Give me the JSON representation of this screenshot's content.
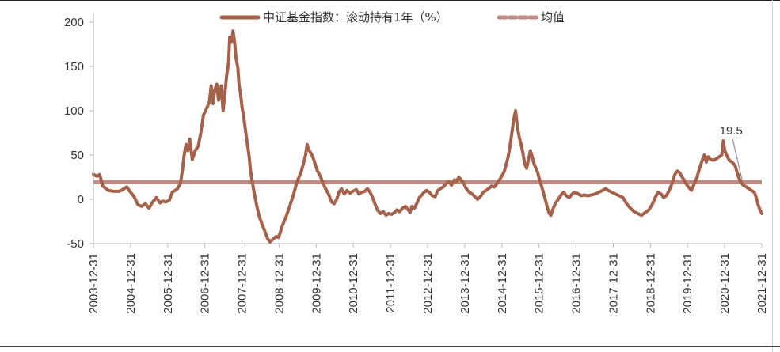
{
  "chart_data": {
    "type": "line",
    "title": "",
    "xlabel": "",
    "ylabel": "",
    "ylim": [
      -50,
      200
    ],
    "yticks": [
      "200",
      "150",
      "100",
      "50",
      "0",
      "-50"
    ],
    "xticks": [
      "2003-12-31",
      "2004-12-31",
      "2005-12-31",
      "2006-12-31",
      "2007-12-31",
      "2008-12-31",
      "2009-12-31",
      "2010-12-31",
      "2011-12-31",
      "2012-12-31",
      "2013-12-31",
      "2014-12-31",
      "2015-12-31",
      "2016-12-31",
      "2017-12-31",
      "2018-12-31",
      "2019-12-31",
      "2020-12-31",
      "2021-12-31"
    ],
    "grid": false,
    "legend_position": "top-center",
    "series": [
      {
        "name": "中证基金指数：滚动持有1年（%）",
        "color": "#a5614a",
        "style": "solid",
        "points": [
          [
            2003.95,
            28
          ],
          [
            2004.05,
            26
          ],
          [
            2004.12,
            28
          ],
          [
            2004.2,
            15
          ],
          [
            2004.35,
            10
          ],
          [
            2004.5,
            9
          ],
          [
            2004.65,
            9
          ],
          [
            2004.78,
            12
          ],
          [
            2004.85,
            14
          ],
          [
            2004.95,
            8
          ],
          [
            2005.05,
            3
          ],
          [
            2005.15,
            -6
          ],
          [
            2005.25,
            -8
          ],
          [
            2005.35,
            -5
          ],
          [
            2005.45,
            -10
          ],
          [
            2005.55,
            -3
          ],
          [
            2005.65,
            2
          ],
          [
            2005.75,
            -4
          ],
          [
            2005.82,
            -2
          ],
          [
            2005.9,
            -3
          ],
          [
            2006.0,
            -1
          ],
          [
            2006.08,
            8
          ],
          [
            2006.15,
            10
          ],
          [
            2006.22,
            12
          ],
          [
            2006.3,
            18
          ],
          [
            2006.35,
            32
          ],
          [
            2006.4,
            50
          ],
          [
            2006.45,
            62
          ],
          [
            2006.5,
            55
          ],
          [
            2006.55,
            68
          ],
          [
            2006.62,
            45
          ],
          [
            2006.7,
            55
          ],
          [
            2006.78,
            60
          ],
          [
            2006.85,
            75
          ],
          [
            2006.92,
            95
          ],
          [
            2007.0,
            102
          ],
          [
            2007.08,
            110
          ],
          [
            2007.13,
            128
          ],
          [
            2007.18,
            108
          ],
          [
            2007.22,
            122
          ],
          [
            2007.28,
            130
          ],
          [
            2007.33,
            112
          ],
          [
            2007.4,
            128
          ],
          [
            2007.45,
            100
          ],
          [
            2007.5,
            120
          ],
          [
            2007.55,
            140
          ],
          [
            2007.6,
            155
          ],
          [
            2007.63,
            183
          ],
          [
            2007.68,
            178
          ],
          [
            2007.72,
            190
          ],
          [
            2007.76,
            178
          ],
          [
            2007.8,
            160
          ],
          [
            2007.85,
            148
          ],
          [
            2007.88,
            130
          ],
          [
            2007.92,
            120
          ],
          [
            2007.96,
            105
          ],
          [
            2008.0,
            95
          ],
          [
            2008.05,
            80
          ],
          [
            2008.1,
            65
          ],
          [
            2008.15,
            50
          ],
          [
            2008.2,
            30
          ],
          [
            2008.28,
            10
          ],
          [
            2008.35,
            -5
          ],
          [
            2008.42,
            -18
          ],
          [
            2008.5,
            -28
          ],
          [
            2008.58,
            -36
          ],
          [
            2008.65,
            -44
          ],
          [
            2008.72,
            -48
          ],
          [
            2008.8,
            -45
          ],
          [
            2008.88,
            -42
          ],
          [
            2008.95,
            -43
          ],
          [
            2009.05,
            -30
          ],
          [
            2009.15,
            -20
          ],
          [
            2009.25,
            -8
          ],
          [
            2009.35,
            5
          ],
          [
            2009.45,
            20
          ],
          [
            2009.55,
            30
          ],
          [
            2009.62,
            40
          ],
          [
            2009.68,
            50
          ],
          [
            2009.72,
            62
          ],
          [
            2009.78,
            55
          ],
          [
            2009.85,
            50
          ],
          [
            2009.9,
            45
          ],
          [
            2009.95,
            38
          ],
          [
            2010.0,
            32
          ],
          [
            2010.08,
            26
          ],
          [
            2010.15,
            18
          ],
          [
            2010.22,
            12
          ],
          [
            2010.3,
            6
          ],
          [
            2010.38,
            -3
          ],
          [
            2010.45,
            -5
          ],
          [
            2010.52,
            0
          ],
          [
            2010.58,
            8
          ],
          [
            2010.65,
            12
          ],
          [
            2010.72,
            6
          ],
          [
            2010.8,
            10
          ],
          [
            2010.88,
            7
          ],
          [
            2010.95,
            9
          ],
          [
            2011.05,
            11
          ],
          [
            2011.12,
            6
          ],
          [
            2011.2,
            8
          ],
          [
            2011.28,
            9
          ],
          [
            2011.35,
            12
          ],
          [
            2011.42,
            8
          ],
          [
            2011.48,
            3
          ],
          [
            2011.55,
            -5
          ],
          [
            2011.62,
            -12
          ],
          [
            2011.7,
            -16
          ],
          [
            2011.78,
            -14
          ],
          [
            2011.85,
            -18
          ],
          [
            2011.92,
            -16
          ],
          [
            2012.0,
            -17
          ],
          [
            2012.08,
            -15
          ],
          [
            2012.15,
            -12
          ],
          [
            2012.22,
            -14
          ],
          [
            2012.3,
            -10
          ],
          [
            2012.38,
            -8
          ],
          [
            2012.45,
            -12
          ],
          [
            2012.5,
            -15
          ],
          [
            2012.55,
            -8
          ],
          [
            2012.62,
            -10
          ],
          [
            2012.68,
            -5
          ],
          [
            2012.75,
            2
          ],
          [
            2012.82,
            5
          ],
          [
            2012.88,
            8
          ],
          [
            2012.95,
            10
          ],
          [
            2013.02,
            8
          ],
          [
            2013.1,
            4
          ],
          [
            2013.18,
            3
          ],
          [
            2013.25,
            10
          ],
          [
            2013.32,
            12
          ],
          [
            2013.4,
            14
          ],
          [
            2013.48,
            18
          ],
          [
            2013.55,
            20
          ],
          [
            2013.62,
            16
          ],
          [
            2013.7,
            22
          ],
          [
            2013.75,
            20
          ],
          [
            2013.82,
            25
          ],
          [
            2013.88,
            22
          ],
          [
            2013.95,
            18
          ],
          [
            2014.02,
            12
          ],
          [
            2014.1,
            8
          ],
          [
            2014.18,
            6
          ],
          [
            2014.25,
            3
          ],
          [
            2014.32,
            0
          ],
          [
            2014.4,
            3
          ],
          [
            2014.48,
            8
          ],
          [
            2014.55,
            10
          ],
          [
            2014.62,
            12
          ],
          [
            2014.7,
            15
          ],
          [
            2014.78,
            14
          ],
          [
            2014.85,
            18
          ],
          [
            2014.92,
            22
          ],
          [
            2015.0,
            28
          ],
          [
            2015.05,
            32
          ],
          [
            2015.1,
            40
          ],
          [
            2015.15,
            48
          ],
          [
            2015.2,
            60
          ],
          [
            2015.25,
            75
          ],
          [
            2015.3,
            90
          ],
          [
            2015.35,
            100
          ],
          [
            2015.4,
            82
          ],
          [
            2015.45,
            70
          ],
          [
            2015.5,
            62
          ],
          [
            2015.55,
            52
          ],
          [
            2015.6,
            40
          ],
          [
            2015.65,
            35
          ],
          [
            2015.7,
            45
          ],
          [
            2015.75,
            55
          ],
          [
            2015.8,
            48
          ],
          [
            2015.85,
            40
          ],
          [
            2015.9,
            35
          ],
          [
            2015.95,
            30
          ],
          [
            2016.0,
            22
          ],
          [
            2016.05,
            15
          ],
          [
            2016.1,
            8
          ],
          [
            2016.15,
            0
          ],
          [
            2016.2,
            -8
          ],
          [
            2016.25,
            -15
          ],
          [
            2016.3,
            -18
          ],
          [
            2016.35,
            -12
          ],
          [
            2016.42,
            -5
          ],
          [
            2016.5,
            0
          ],
          [
            2016.58,
            5
          ],
          [
            2016.65,
            8
          ],
          [
            2016.72,
            4
          ],
          [
            2016.8,
            2
          ],
          [
            2016.88,
            6
          ],
          [
            2016.95,
            8
          ],
          [
            2017.05,
            6
          ],
          [
            2017.12,
            4
          ],
          [
            2017.2,
            5
          ],
          [
            2017.3,
            4
          ],
          [
            2017.4,
            5
          ],
          [
            2017.5,
            6
          ],
          [
            2017.6,
            8
          ],
          [
            2017.7,
            10
          ],
          [
            2017.78,
            12
          ],
          [
            2017.85,
            10
          ],
          [
            2017.95,
            8
          ],
          [
            2018.05,
            6
          ],
          [
            2018.15,
            4
          ],
          [
            2018.25,
            2
          ],
          [
            2018.35,
            -5
          ],
          [
            2018.45,
            -10
          ],
          [
            2018.55,
            -14
          ],
          [
            2018.65,
            -16
          ],
          [
            2018.75,
            -18
          ],
          [
            2018.85,
            -15
          ],
          [
            2018.95,
            -12
          ],
          [
            2019.05,
            -5
          ],
          [
            2019.12,
            2
          ],
          [
            2019.2,
            8
          ],
          [
            2019.28,
            6
          ],
          [
            2019.35,
            2
          ],
          [
            2019.42,
            4
          ],
          [
            2019.5,
            10
          ],
          [
            2019.58,
            18
          ],
          [
            2019.65,
            28
          ],
          [
            2019.72,
            32
          ],
          [
            2019.78,
            30
          ],
          [
            2019.85,
            25
          ],
          [
            2019.9,
            22
          ],
          [
            2019.95,
            18
          ],
          [
            2020.02,
            14
          ],
          [
            2020.1,
            10
          ],
          [
            2020.18,
            18
          ],
          [
            2020.25,
            25
          ],
          [
            2020.32,
            35
          ],
          [
            2020.4,
            45
          ],
          [
            2020.45,
            50
          ],
          [
            2020.5,
            42
          ],
          [
            2020.55,
            48
          ],
          [
            2020.62,
            45
          ],
          [
            2020.7,
            44
          ],
          [
            2020.78,
            46
          ],
          [
            2020.85,
            48
          ],
          [
            2020.92,
            50
          ],
          [
            2020.96,
            66
          ],
          [
            2021.0,
            55
          ],
          [
            2021.05,
            50
          ],
          [
            2021.12,
            44
          ],
          [
            2021.2,
            42
          ],
          [
            2021.28,
            38
          ],
          [
            2021.35,
            28
          ],
          [
            2021.42,
            20
          ],
          [
            2021.5,
            16
          ],
          [
            2021.58,
            14
          ],
          [
            2021.65,
            12
          ],
          [
            2021.72,
            10
          ],
          [
            2021.8,
            8
          ],
          [
            2021.85,
            2
          ],
          [
            2021.9,
            -6
          ],
          [
            2021.95,
            -12
          ],
          [
            2022.0,
            -16
          ]
        ]
      },
      {
        "name": "均值",
        "color": "#c08a80",
        "style": "dashed",
        "value": 19.5
      }
    ],
    "annotations": [
      {
        "text": "19.5",
        "x": 2021.0,
        "y": 66,
        "target_x": 2021.48,
        "target_y": 19.5
      }
    ]
  }
}
